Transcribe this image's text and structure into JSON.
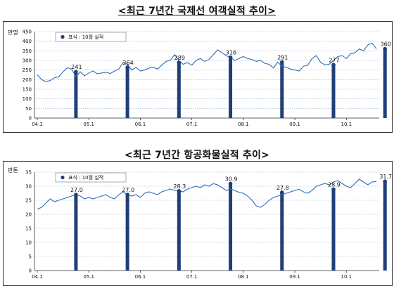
{
  "titles": {
    "passenger": "<최근 7년간 국제선 여객실적 추이>",
    "cargo": "<최근 7년간 항공화물실적 추이>"
  },
  "colors": {
    "line": "#2e6fb8",
    "bar": "#1f3f78",
    "grid": "#9ab0d0",
    "axis": "#333333"
  },
  "chart_data": [
    {
      "type": "line",
      "title": "<최근 7년간 국제선 여객실적 추이>",
      "unit": "만명",
      "ylim": [
        0,
        450
      ],
      "yticks": [
        0,
        50,
        100,
        150,
        200,
        250,
        300,
        350,
        400,
        450
      ],
      "xticks": [
        "04.1",
        "05.1",
        "06.1",
        "07.1",
        "08.1",
        "09.1",
        "10.1"
      ],
      "grid": true,
      "legend": {
        "placement": "top-left",
        "label": "표식 : 10월 실적"
      },
      "x_start": "2004-01",
      "series": [
        {
          "values": [
            225,
            200,
            190,
            195,
            210,
            215,
            240,
            262,
            255,
            215,
            241,
            220,
            235,
            245,
            230,
            235,
            238,
            232,
            245,
            255,
            290,
            280,
            250,
            264,
            245,
            250,
            260,
            265,
            255,
            275,
            295,
            300,
            330,
            300,
            280,
            289,
            275,
            300,
            310,
            295,
            305,
            330,
            355,
            340,
            325,
            316,
            300,
            310,
            320,
            310,
            305,
            295,
            300,
            285,
            280,
            260,
            291,
            270,
            265,
            255,
            250,
            245,
            270,
            275,
            310,
            325,
            290,
            277,
            280,
            300,
            320,
            325,
            310,
            335,
            340,
            360,
            350,
            380,
            390,
            360
          ],
          "highlighted": [
            {
              "x": "2004-10",
              "value": 241,
              "label": "241"
            },
            {
              "x": "2005-10",
              "value": 264,
              "label": "264"
            },
            {
              "x": "2006-10",
              "value": 289,
              "label": "289"
            },
            {
              "x": "2007-10",
              "value": 316,
              "label": "316"
            },
            {
              "x": "2008-10",
              "value": 291,
              "label": "291"
            },
            {
              "x": "2009-10",
              "value": 277,
              "label": "277"
            },
            {
              "x": "2010-10",
              "value": 360,
              "label": "360"
            }
          ]
        }
      ]
    },
    {
      "type": "line",
      "title": "<최근 7년간 항공화물실적 추이>",
      "unit": "만톤",
      "ylim": [
        0,
        35
      ],
      "yticks": [
        0,
        5,
        10,
        15,
        20,
        25,
        30,
        35
      ],
      "xticks": [
        "04.1",
        "05.1",
        "06.1",
        "07.1",
        "08.1",
        "09.1",
        "10.1"
      ],
      "grid": true,
      "legend": {
        "placement": "top-left",
        "label": "표식 : 10월 실적"
      },
      "x_start": "2004-01",
      "series": [
        {
          "values": [
            21.8,
            22.5,
            24.0,
            25.5,
            24.5,
            25.0,
            25.5,
            26.0,
            26.5,
            27.0,
            26.5,
            25.5,
            26.0,
            25.5,
            26.0,
            26.5,
            27.0,
            26.0,
            25.5,
            27.0,
            28.0,
            27.0,
            26.5,
            27.0,
            26.0,
            27.5,
            28.0,
            27.5,
            27.0,
            28.0,
            28.5,
            29.0,
            28.5,
            28.3,
            28.0,
            29.0,
            29.5,
            30.0,
            29.5,
            30.5,
            30.0,
            30.9,
            30.5,
            29.5,
            28.5,
            29.0,
            28.5,
            27.8,
            27.5,
            26.5,
            25.0,
            23.0,
            22.5,
            23.5,
            25.0,
            26.0,
            26.5,
            27.0,
            27.5,
            28.0,
            28.5,
            28.9,
            28.0,
            27.5,
            28.5,
            30.0,
            30.5,
            31.0,
            30.5,
            31.5,
            32.0,
            31.0,
            30.0,
            29.5,
            31.0,
            32.5,
            31.5,
            30.5,
            31.5,
            31.7
          ],
          "highlighted": [
            {
              "x": "2004-10",
              "value": 27.0,
              "label": "27.0"
            },
            {
              "x": "2005-10",
              "value": 27.0,
              "label": "27.0"
            },
            {
              "x": "2006-10",
              "value": 28.3,
              "label": "28.3"
            },
            {
              "x": "2007-10",
              "value": 30.9,
              "label": "30.9"
            },
            {
              "x": "2008-10",
              "value": 27.8,
              "label": "27.8"
            },
            {
              "x": "2009-10",
              "value": 28.9,
              "label": "28.9"
            },
            {
              "x": "2010-10",
              "value": 31.7,
              "label": "31.7"
            }
          ]
        }
      ]
    }
  ]
}
